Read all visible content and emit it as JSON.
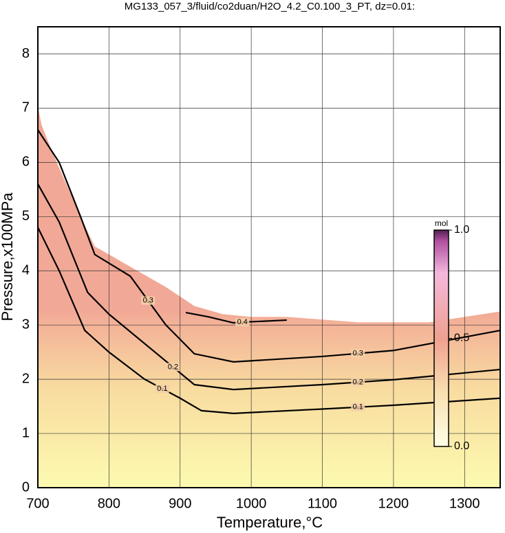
{
  "chart_data": {
    "type": "contour",
    "title": "MG133_057_3/fluid/co2duan/H2O_4.2_C0.100_3_PT, dz=0.01:",
    "x_label": "Temperature,°C",
    "y_label": "Pressure,x100MPa",
    "xlim": [
      700,
      1350
    ],
    "ylim": [
      0,
      8.5
    ],
    "xticks": [
      700,
      800,
      900,
      1000,
      1100,
      1200,
      1300
    ],
    "yticks": [
      0,
      1,
      2,
      3,
      4,
      5,
      6,
      7,
      8
    ],
    "grid": true,
    "field_boundary": {
      "x": [
        700,
        705,
        720,
        740,
        760,
        780,
        800,
        840,
        880,
        920,
        960,
        1000,
        1050,
        1100,
        1150,
        1200,
        1250,
        1300,
        1350
      ],
      "values": [
        7.05,
        6.7,
        6.2,
        5.6,
        5.0,
        4.45,
        4.3,
        4.0,
        3.7,
        3.35,
        3.2,
        3.15,
        3.15,
        3.1,
        3.05,
        3.05,
        3.05,
        3.15,
        3.25
      ]
    },
    "series": [
      {
        "name": "0.1",
        "color": "#000000",
        "x": [
          700,
          730,
          766,
          800,
          850,
          900,
          930,
          975,
          1100,
          1200,
          1350
        ],
        "values": [
          4.8,
          4.0,
          2.9,
          2.5,
          2.0,
          1.65,
          1.42,
          1.37,
          1.45,
          1.52,
          1.65
        ]
      },
      {
        "name": "0.2",
        "color": "#000000",
        "x": [
          700,
          730,
          770,
          800,
          860,
          920,
          975,
          1100,
          1200,
          1350
        ],
        "values": [
          5.6,
          4.9,
          3.6,
          3.2,
          2.55,
          1.9,
          1.81,
          1.9,
          1.99,
          2.18
        ]
      },
      {
        "name": "0.3",
        "color": "#000000",
        "x": [
          700,
          730,
          760,
          780,
          830,
          880,
          920,
          975,
          1100,
          1200,
          1350
        ],
        "values": [
          6.6,
          6.0,
          5.0,
          4.3,
          3.9,
          3.0,
          2.47,
          2.32,
          2.42,
          2.53,
          2.9
        ]
      },
      {
        "name": "0.4",
        "color": "#000000",
        "x": [
          908,
          940,
          975,
          1000,
          1050
        ],
        "values": [
          3.23,
          3.15,
          3.04,
          3.06,
          3.09
        ]
      }
    ],
    "colorbar": {
      "label": "mol",
      "range": [
        0,
        1
      ],
      "ticks": [
        {
          "value": 0,
          "label": "0.0"
        },
        0.5,
        {
          "value": 1,
          "label": "1.0"
        }
      ]
    }
  }
}
